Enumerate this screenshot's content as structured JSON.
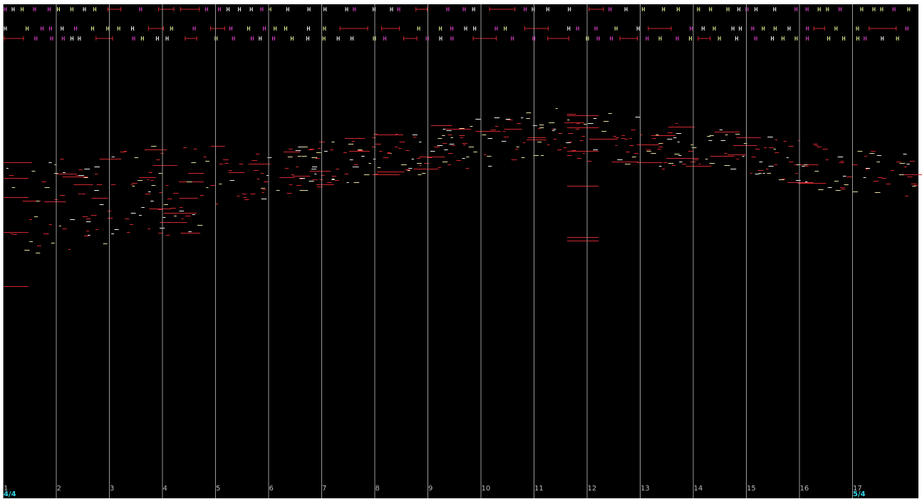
{
  "measures": [
    1,
    2,
    3,
    4,
    5,
    6,
    7,
    8,
    9,
    10,
    11,
    12,
    13,
    14,
    15,
    16,
    17
  ],
  "time_signatures": [
    "4/4",
    "5/4"
  ]
}
